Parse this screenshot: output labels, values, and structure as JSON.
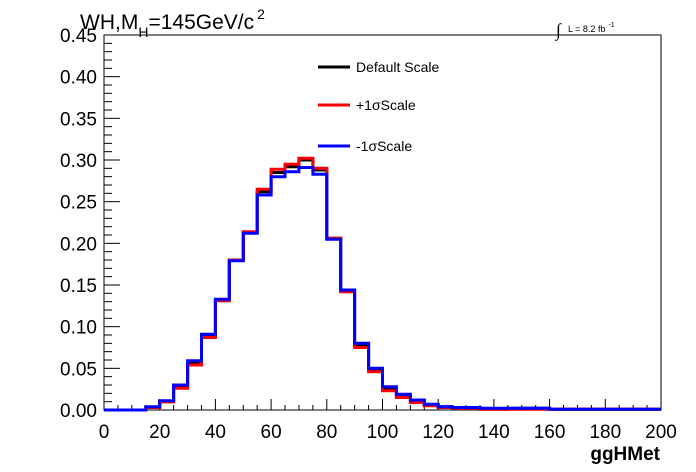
{
  "chart_data": {
    "type": "line",
    "title": {
      "prefix": "WH,M",
      "subscript": "H",
      "main": "=145GeV/c",
      "superscript": "2"
    },
    "luminosity": {
      "integral": "∫",
      "text": "L = 8.2 fb",
      "superscript": "-1"
    },
    "xlabel": "ggHMet",
    "ylabel": "",
    "xlim": [
      0,
      200
    ],
    "ylim": [
      0,
      0.45
    ],
    "xticks": [
      "0",
      "20",
      "40",
      "60",
      "80",
      "100",
      "120",
      "140",
      "160",
      "180",
      "200"
    ],
    "yticks": [
      "0.00",
      "0.05",
      "0.10",
      "0.15",
      "0.20",
      "0.25",
      "0.30",
      "0.35",
      "0.40",
      "0.45"
    ],
    "bin_width": 5,
    "legend_position": "top-center",
    "x": [
      0,
      5,
      10,
      15,
      20,
      25,
      30,
      35,
      40,
      45,
      50,
      55,
      60,
      65,
      70,
      75,
      80,
      85,
      90,
      95,
      100,
      105,
      110,
      115,
      120,
      125,
      130,
      135,
      140,
      145,
      150,
      155,
      160,
      165,
      170,
      175,
      180,
      185,
      190,
      195
    ],
    "series": [
      {
        "name": "Default Scale",
        "color": "#000000",
        "values": [
          0,
          0,
          0,
          0.003,
          0.01,
          0.028,
          0.056,
          0.089,
          0.132,
          0.18,
          0.213,
          0.262,
          0.285,
          0.292,
          0.3,
          0.288,
          0.206,
          0.143,
          0.078,
          0.048,
          0.026,
          0.017,
          0.011,
          0.006,
          0.004,
          0.003,
          0.002,
          0.001,
          0.001,
          0.002,
          0.002,
          0.002,
          0.001,
          0.001,
          0.001,
          0.001,
          0.001,
          0.001,
          0.001,
          0.001
        ]
      },
      {
        "name": "+1σScale",
        "color": "#ff0000",
        "values": [
          0,
          0,
          0,
          0.003,
          0.01,
          0.026,
          0.054,
          0.087,
          0.131,
          0.18,
          0.214,
          0.265,
          0.289,
          0.295,
          0.302,
          0.29,
          0.206,
          0.142,
          0.075,
          0.046,
          0.023,
          0.015,
          0.009,
          0.005,
          0.003,
          0.002,
          0.002,
          0.001,
          0.001,
          0.001,
          0.001,
          0.001,
          0.001,
          0.001,
          0.001,
          0.001,
          0.001,
          0.001,
          0.001,
          0.001
        ]
      },
      {
        "name": "-1σScale",
        "color": "#0000ff",
        "values": [
          0,
          0,
          0,
          0.004,
          0.011,
          0.03,
          0.059,
          0.091,
          0.133,
          0.179,
          0.212,
          0.258,
          0.28,
          0.286,
          0.291,
          0.283,
          0.205,
          0.144,
          0.08,
          0.05,
          0.028,
          0.019,
          0.012,
          0.007,
          0.004,
          0.003,
          0.003,
          0.002,
          0.002,
          0.002,
          0.002,
          0.002,
          0.001,
          0.001,
          0.001,
          0.001,
          0.001,
          0.001,
          0.001,
          0.001
        ]
      }
    ]
  }
}
